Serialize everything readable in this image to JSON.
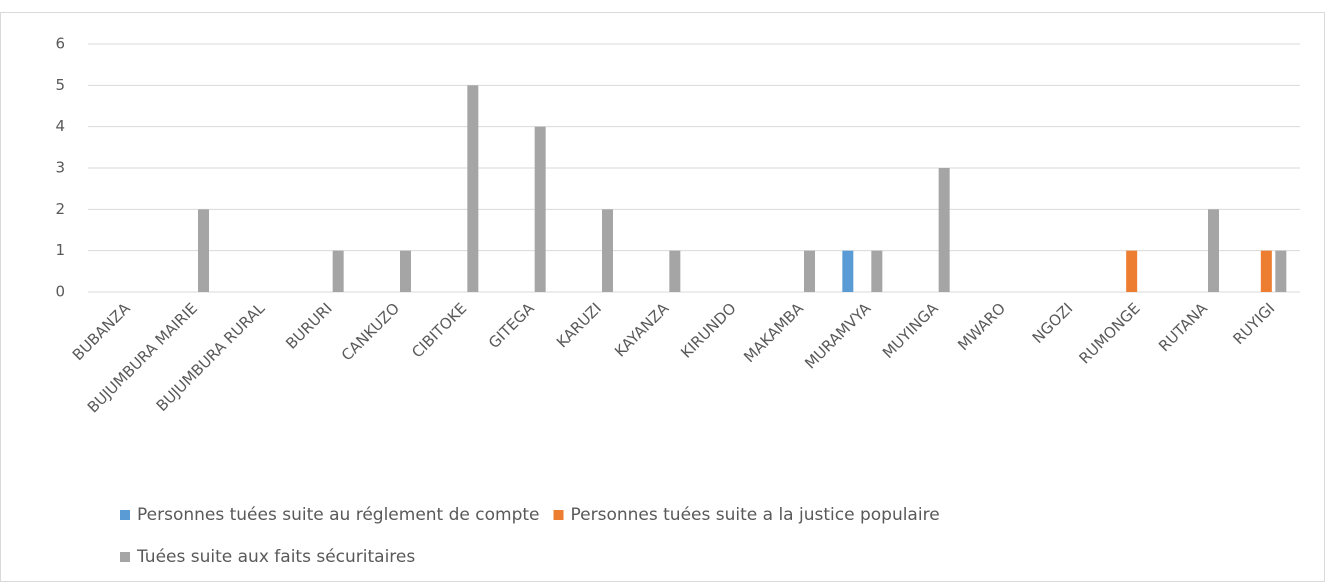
{
  "chart_data": {
    "type": "bar",
    "categories": [
      "BUBANZA",
      "BUJUMBURA MAIRIE",
      "BUJUMBURA RURAL",
      "BURURI",
      "CANKUZO",
      "CIBITOKE",
      "GITEGA",
      "KARUZI",
      "KAYANZA",
      "KIRUNDO",
      "MAKAMBA",
      "MURAMVYA",
      "MUYINGA",
      "MWARO",
      "NGOZI",
      "RUMONGE",
      "RUTANA",
      "RUYIGI"
    ],
    "series": [
      {
        "name": "Personnes tuées suite au réglement de compte",
        "color": "#5b9bd5",
        "values": [
          0,
          0,
          0,
          0,
          0,
          0,
          0,
          0,
          0,
          0,
          0,
          1,
          0,
          0,
          0,
          0,
          0,
          0
        ]
      },
      {
        "name": "Personnes tuées suite a la justice populaire",
        "color": "#ed7d31",
        "values": [
          0,
          0,
          0,
          0,
          0,
          0,
          0,
          0,
          0,
          0,
          0,
          0,
          0,
          0,
          0,
          1,
          0,
          1
        ]
      },
      {
        "name": "Tuées suite aux faits sécuritaires",
        "color": "#a5a5a5",
        "values": [
          0,
          2,
          0,
          1,
          1,
          5,
          4,
          2,
          1,
          0,
          1,
          1,
          3,
          0,
          0,
          0,
          2,
          1
        ]
      }
    ],
    "ylim": [
      0,
      6
    ],
    "yticks": [
      0,
      1,
      2,
      3,
      4,
      5,
      6
    ],
    "grid": true,
    "legend": "bottom"
  }
}
